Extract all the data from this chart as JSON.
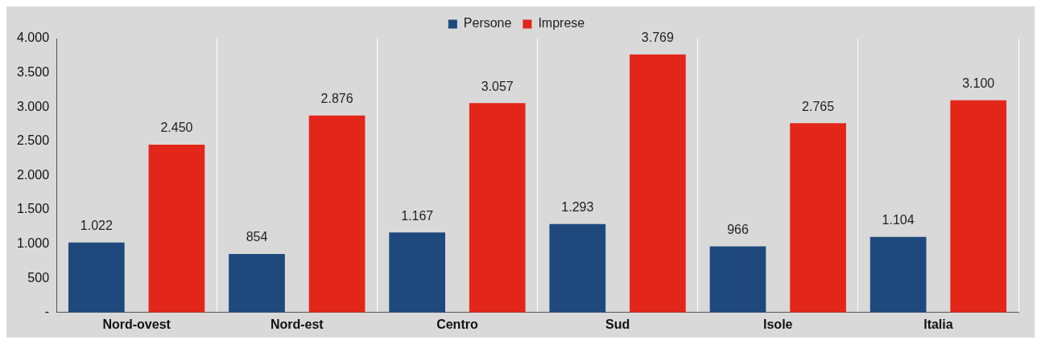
{
  "chart_data": {
    "type": "bar",
    "categories": [
      "Nord-ovest",
      "Nord-est",
      "Centro",
      "Sud",
      "Isole",
      "Italia"
    ],
    "series": [
      {
        "name": "Persone",
        "color": "#1f497d",
        "values": [
          1022,
          854,
          1167,
          1293,
          966,
          1104
        ],
        "value_labels": [
          "1.022",
          "854",
          "1.167",
          "1.293",
          "966",
          "1.104"
        ]
      },
      {
        "name": "Imprese",
        "color": "#e3261a",
        "values": [
          2450,
          2876,
          3057,
          3769,
          2765,
          3100
        ],
        "value_labels": [
          "2.450",
          "2.876",
          "3.057",
          "3.769",
          "2.765",
          "3.100"
        ]
      }
    ],
    "ylim": [
      0,
      4000
    ],
    "yticks": [
      {
        "value": 0,
        "label": "-"
      },
      500,
      {
        "value": 1000,
        "label": "1.000"
      },
      {
        "value": 1500,
        "label": "1.500"
      },
      {
        "value": 2000,
        "label": "2.000"
      },
      {
        "value": 2500,
        "label": "2.500"
      },
      {
        "value": 3000,
        "label": "3.000"
      },
      {
        "value": 3500,
        "label": "3.500"
      },
      {
        "value": 4000,
        "label": "4.000"
      }
    ],
    "grid": "x",
    "legend": "top"
  }
}
